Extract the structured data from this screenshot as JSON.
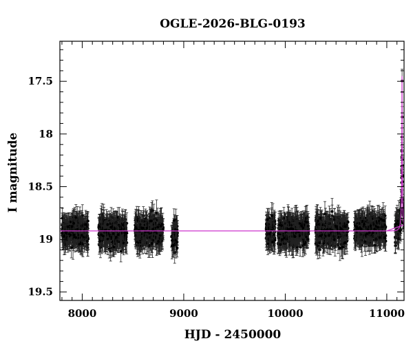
{
  "chart_data": {
    "type": "scatter",
    "title": "OGLE-2026-BLG-0193",
    "xlabel": "HJD - 2450000",
    "ylabel": "I magnitude",
    "xlim": [
      7780,
      11170
    ],
    "ylim": [
      19.58,
      17.12
    ],
    "y_inverted": true,
    "grid": false,
    "xticks": [
      {
        "value": 8000,
        "label": "8000"
      },
      {
        "value": 9000,
        "label": "9000"
      },
      {
        "value": 10000,
        "label": "10000"
      },
      {
        "value": 11000,
        "label": "11000"
      }
    ],
    "yticks": [
      {
        "value": 17.5,
        "label": "17.5"
      },
      {
        "value": 18,
        "label": "18"
      },
      {
        "value": 18.5,
        "label": "18.5"
      },
      {
        "value": 19,
        "label": "19"
      },
      {
        "value": 19.5,
        "label": "19.5"
      }
    ],
    "observation_seasons": [
      {
        "x_start": 7800,
        "x_end": 8060,
        "mag_mean": 18.93
      },
      {
        "x_start": 8160,
        "x_end": 8440,
        "mag_mean": 18.93
      },
      {
        "x_start": 8520,
        "x_end": 8800,
        "mag_mean": 18.93
      },
      {
        "x_start": 8880,
        "x_end": 8940,
        "mag_mean": 18.95
      },
      {
        "x_start": 9810,
        "x_end": 9900,
        "mag_mean": 18.93
      },
      {
        "x_start": 9930,
        "x_end": 10230,
        "mag_mean": 18.93
      },
      {
        "x_start": 10300,
        "x_end": 10620,
        "mag_mean": 18.92
      },
      {
        "x_start": 10680,
        "x_end": 10990,
        "mag_mean": 18.91
      },
      {
        "x_start": 11080,
        "x_end": 11165,
        "mag_mean": 18.7
      }
    ],
    "point_scatter_mag": 0.09,
    "error_bar_mag": 0.1,
    "model_curve": {
      "baseline_mag": 18.92,
      "peak_time": 11150,
      "peak_mag": 17.45,
      "color": "#cc33cc"
    },
    "point_color": "#000000",
    "error_bar_color": "#222222"
  }
}
